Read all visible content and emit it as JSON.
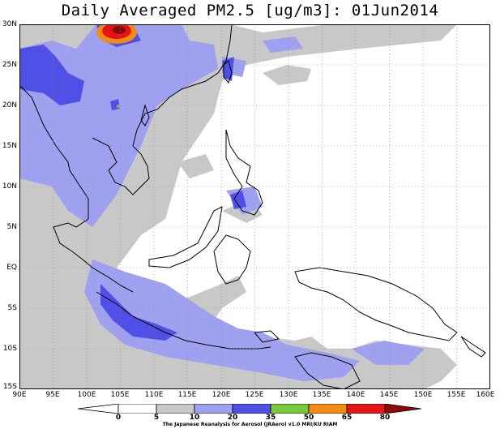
{
  "title": "Daily Averaged PM2.5 [ug/m3]: 01Jun2014",
  "lat_labels": [
    "30N",
    "25N",
    "20N",
    "15N",
    "10N",
    "5N",
    "EQ",
    "5S",
    "10S",
    "15S"
  ],
  "lon_labels": [
    "90E",
    "95E",
    "100E",
    "105E",
    "110E",
    "115E",
    "120E",
    "125E",
    "130E",
    "135E",
    "140E",
    "145E",
    "150E",
    "155E",
    "160E"
  ],
  "colorbar": {
    "levels": [
      "0",
      "5",
      "10",
      "20",
      "35",
      "50",
      "65",
      "80"
    ],
    "colors": [
      "#ffffff",
      "#c8c8c8",
      "#a0a0f0",
      "#5050e6",
      "#78c83c",
      "#f08c14",
      "#e61414",
      "#8c0a0a"
    ]
  },
  "credit": "The Japanese Reanalysis for Aerosol (JRAero) v1.0 MRI/KU RIAM",
  "colors": {
    "light_gray": "#c8c8c8",
    "light_blue": "#a0a0f0",
    "mid_blue": "#5050e6"
  }
}
